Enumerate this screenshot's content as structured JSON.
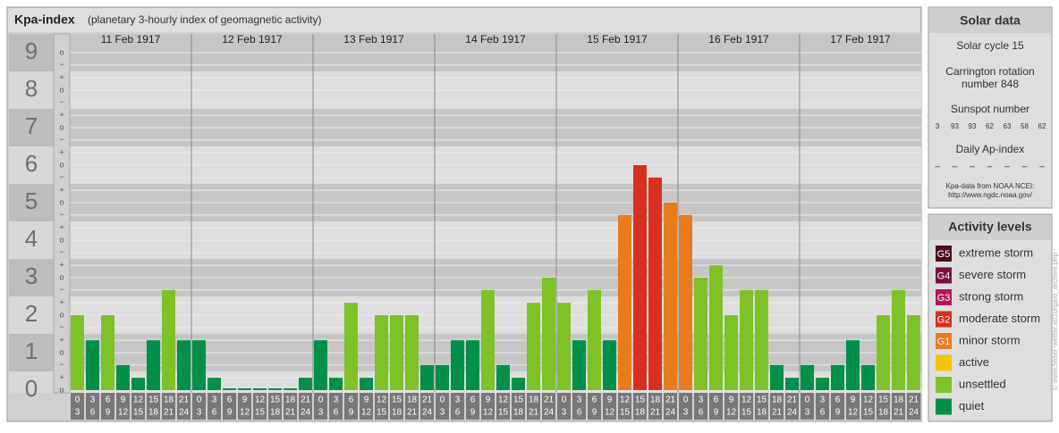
{
  "chart_data": {
    "type": "bar",
    "title": "Kpa-index",
    "subtitle": "(planetary 3-hourly index of geomagnetic activity)",
    "days": [
      "11 Feb 1917",
      "12 Feb 1917",
      "13 Feb 1917",
      "14 Feb 1917",
      "15 Feb 1917",
      "16 Feb 1917",
      "17 Feb 1917"
    ],
    "intervals": [
      [
        0,
        3
      ],
      [
        3,
        6
      ],
      [
        6,
        9
      ],
      [
        9,
        12
      ],
      [
        12,
        15
      ],
      [
        15,
        18
      ],
      [
        18,
        21
      ],
      [
        21,
        24
      ]
    ],
    "values": [
      2,
      1.33,
      2,
      0.67,
      0.33,
      1.33,
      2.67,
      1.33,
      1.33,
      0.33,
      0,
      0,
      0,
      0,
      0,
      0.33,
      1.33,
      0.33,
      2.33,
      0.33,
      2,
      2,
      2,
      0.67,
      0.67,
      1.33,
      1.33,
      2.67,
      0.67,
      0.33,
      2.33,
      3,
      2.33,
      1.33,
      2.67,
      1.33,
      4.67,
      6,
      5.67,
      5,
      4.67,
      3,
      3.33,
      2,
      2.67,
      2.67,
      0.67,
      0.33,
      0.67,
      0.33,
      0.67,
      1.33,
      0.67,
      2,
      2.67,
      2
    ],
    "colors": [
      "#7ec228",
      "#00904a",
      "#7ec228",
      "#00904a",
      "#00904a",
      "#00904a",
      "#7ec228",
      "#00904a",
      "#00904a",
      "#00904a",
      "#00904a",
      "#00904a",
      "#00904a",
      "#00904a",
      "#00904a",
      "#00904a",
      "#00904a",
      "#00904a",
      "#7ec228",
      "#00904a",
      "#7ec228",
      "#7ec228",
      "#7ec228",
      "#00904a",
      "#00904a",
      "#00904a",
      "#00904a",
      "#7ec228",
      "#00904a",
      "#00904a",
      "#7ec228",
      "#7ec228",
      "#7ec228",
      "#00904a",
      "#7ec228",
      "#00904a",
      "#e87b1c",
      "#d8301f",
      "#d8301f",
      "#e87b1c",
      "#e87b1c",
      "#7ec228",
      "#7ec228",
      "#7ec228",
      "#7ec228",
      "#7ec228",
      "#00904a",
      "#00904a",
      "#00904a",
      "#00904a",
      "#00904a",
      "#00904a",
      "#00904a",
      "#7ec228",
      "#7ec228",
      "#7ec228"
    ],
    "ylim": [
      0,
      9.5
    ],
    "yticks": [
      0,
      1,
      2,
      3,
      4,
      5,
      6,
      7,
      8,
      9
    ],
    "ysubticks": [
      {
        "value": 0,
        "label": "o"
      },
      {
        "value": 0.33,
        "label": "+"
      },
      {
        "value": 0.67,
        "label": "−"
      },
      {
        "value": 1,
        "label": "o"
      },
      {
        "value": 1.33,
        "label": "+"
      },
      {
        "value": 1.67,
        "label": "−"
      },
      {
        "value": 2,
        "label": "o"
      },
      {
        "value": 2.33,
        "label": "+"
      },
      {
        "value": 2.67,
        "label": "−"
      },
      {
        "value": 3,
        "label": "o"
      },
      {
        "value": 3.33,
        "label": "+"
      },
      {
        "value": 3.67,
        "label": "−"
      },
      {
        "value": 4,
        "label": "o"
      },
      {
        "value": 4.33,
        "label": "+"
      },
      {
        "value": 4.67,
        "label": "−"
      },
      {
        "value": 5,
        "label": "o"
      },
      {
        "value": 5.33,
        "label": "+"
      },
      {
        "value": 5.67,
        "label": "−"
      },
      {
        "value": 6,
        "label": "o"
      },
      {
        "value": 6.33,
        "label": "+"
      },
      {
        "value": 6.67,
        "label": "−"
      },
      {
        "value": 7,
        "label": "o"
      },
      {
        "value": 7.33,
        "label": "+"
      },
      {
        "value": 7.67,
        "label": "−"
      },
      {
        "value": 8,
        "label": "o"
      },
      {
        "value": 8.33,
        "label": "+"
      },
      {
        "value": 8.67,
        "label": "−"
      },
      {
        "value": 9,
        "label": "o"
      }
    ]
  },
  "solar_data": {
    "title": "Solar data",
    "cycle": "Solar cycle 15",
    "carrington": [
      "Carrington rotation",
      "number 848"
    ],
    "sunspot_title": "Sunspot number",
    "sunspots": [
      3,
      93,
      93,
      62,
      63,
      58,
      62
    ],
    "ap_title": "Daily Ap-index",
    "ap": [
      "–",
      "–",
      "–",
      "–",
      "–",
      "–",
      "–"
    ],
    "source": [
      "Kpa-data from NOAA NCEI:",
      "http://www.ngdc.noaa.gov/"
    ]
  },
  "activity_levels": {
    "title": "Activity levels",
    "levels": [
      {
        "code": "G5",
        "label": "extreme storm",
        "color": "#4a0a22"
      },
      {
        "code": "G4",
        "label": "severe storm",
        "color": "#7a0f45"
      },
      {
        "code": "G3",
        "label": "strong storm",
        "color": "#b0185c"
      },
      {
        "code": "G2",
        "label": "moderate storm",
        "color": "#d8301f"
      },
      {
        "code": "G1",
        "label": "minor storm",
        "color": "#e87b1c"
      },
      {
        "code": "",
        "label": "active",
        "color": "#f5c400"
      },
      {
        "code": "",
        "label": "unsettled",
        "color": "#7ec228"
      },
      {
        "code": "",
        "label": "quiet",
        "color": "#00904a"
      }
    ]
  },
  "watermark": "© www.tieser-wetter.at/zurga/o_archive.php"
}
